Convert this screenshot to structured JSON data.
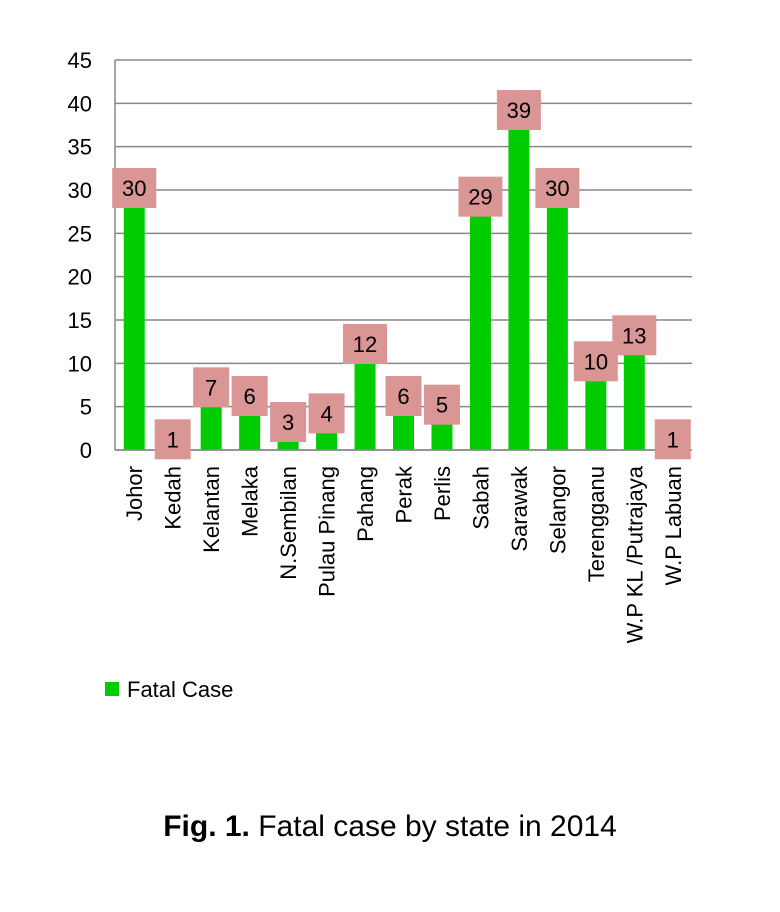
{
  "chart_data": {
    "type": "bar",
    "categories": [
      "Johor",
      "Kedah",
      "Kelantan",
      "Melaka",
      "N.Sembilan",
      "Pulau Pinang",
      "Pahang",
      "Perak",
      "Perlis",
      "Sabah",
      "Sarawak",
      "Selangor",
      "Terengganu",
      "W.P KL /Putrajaya",
      "W.P Labuan"
    ],
    "series": [
      {
        "name": "Fatal Case",
        "values": [
          30,
          1,
          7,
          6,
          3,
          4,
          12,
          6,
          5,
          29,
          39,
          30,
          10,
          13,
          1
        ]
      }
    ],
    "ylim": [
      0,
      45
    ],
    "yticks": [
      0,
      5,
      10,
      15,
      20,
      25,
      30,
      35,
      40,
      45
    ],
    "grid": true,
    "legend": "bottom-left",
    "colors": {
      "bar": "#00CC00",
      "label_box": "#D99694",
      "grid": "#888888"
    }
  },
  "caption": {
    "fig": "Fig. 1.",
    "text": " Fatal case by state in 2014"
  }
}
